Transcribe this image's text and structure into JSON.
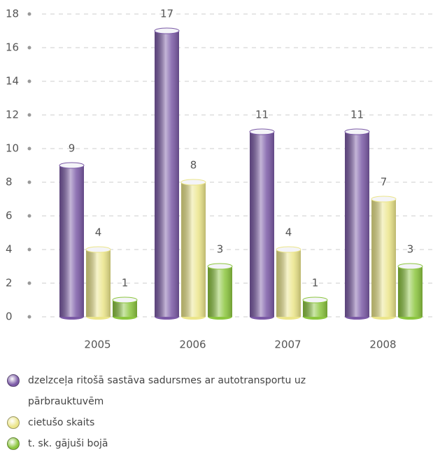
{
  "chart_data": {
    "type": "bar",
    "categories": [
      "2005",
      "2006",
      "2007",
      "2008"
    ],
    "series": [
      {
        "name": "dzelzceļa ritošā sastāva sadursmes ar autotransportu uz pārbrauktuvēm",
        "color": "#7b5aa6",
        "values": [
          9,
          17,
          11,
          11
        ]
      },
      {
        "name": "cietušo skaits",
        "color": "#ebe58a",
        "values": [
          4,
          8,
          4,
          7
        ]
      },
      {
        "name": "t. sk. gājuši bojā",
        "color": "#8cc63f",
        "values": [
          1,
          3,
          1,
          3
        ]
      }
    ],
    "ylim": [
      0,
      18
    ],
    "yticks": [
      0,
      2,
      4,
      6,
      8,
      10,
      12,
      14,
      16,
      18
    ],
    "grid": true
  }
}
